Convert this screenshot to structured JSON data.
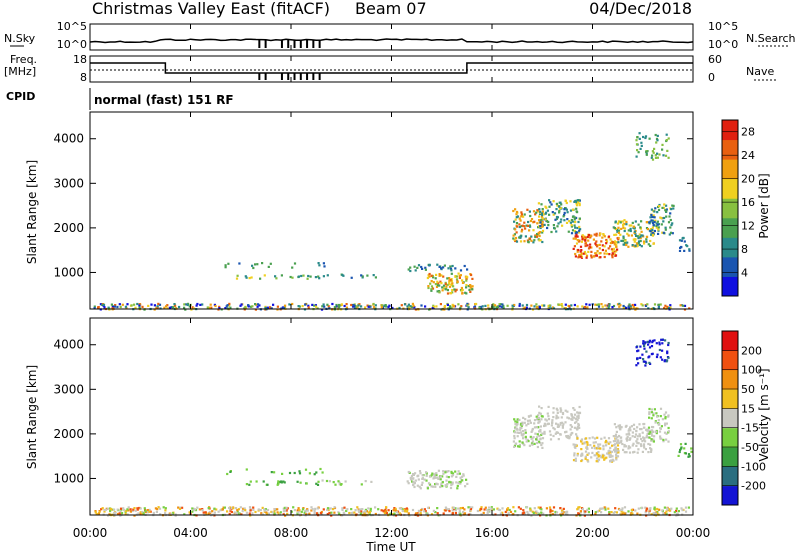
{
  "header": {
    "title": "Christmas Valley East (fitACF)",
    "beam": "Beam 07",
    "date": "04/Dec/2018"
  },
  "top_panel": {
    "left_label": "N.Sky",
    "right_label": "N.Search",
    "left_ticks": [
      "10^5",
      "10^0"
    ],
    "right_ticks": [
      "10^5",
      "10^0"
    ]
  },
  "freq_panel": {
    "left_label_1": "Freq.",
    "left_label_2": "[MHz]",
    "right_label": "Nave",
    "left_ticks": [
      "18",
      "8"
    ],
    "right_ticks": [
      "60",
      "0"
    ],
    "freq_segments_utc_hours": [
      [
        0,
        3.0
      ],
      [
        3.0,
        15.0
      ],
      [
        15.0,
        24.0
      ]
    ]
  },
  "cpid": {
    "label": "CPID",
    "value": "normal (fast) 151 RF"
  },
  "x_axis": {
    "ticks": [
      "00:00",
      "04:00",
      "08:00",
      "12:00",
      "16:00",
      "20:00",
      "00:00"
    ],
    "title": "Time UT"
  },
  "chart_data": [
    {
      "type": "heatmap",
      "name": "power",
      "ylabel": "Slant Range [km]",
      "xlim_hours": [
        0,
        24
      ],
      "ylim_km": [
        180,
        4600
      ],
      "y_ticks": [
        "1000",
        "2000",
        "3000",
        "4000"
      ],
      "colorbar": {
        "label": "Power [dB]",
        "ticks": [
          "4",
          "8",
          "12",
          "16",
          "20",
          "24",
          "28"
        ],
        "range": [
          0,
          30
        ],
        "colors": [
          "#1010e0",
          "#1a55b0",
          "#2a8a8a",
          "#4aa050",
          "#88c040",
          "#f0d020",
          "#f0a010",
          "#e86010",
          "#e02010"
        ]
      }
    },
    {
      "type": "heatmap",
      "name": "velocity",
      "ylabel": "Slant Range [km]",
      "xlim_hours": [
        0,
        24
      ],
      "ylim_km": [
        180,
        4600
      ],
      "y_ticks": [
        "1000",
        "2000",
        "3000",
        "4000"
      ],
      "colorbar": {
        "label": "Velocity [m s⁻¹]",
        "ticks": [
          "200",
          "100",
          "50",
          "15",
          "-15",
          "-50",
          "-100",
          "-200"
        ],
        "colors": [
          "#1414d4",
          "#2a6e80",
          "#3aa040",
          "#78d040",
          "#c8c8c0",
          "#f0c020",
          "#f09010",
          "#f05010",
          "#e01010"
        ]
      }
    }
  ]
}
